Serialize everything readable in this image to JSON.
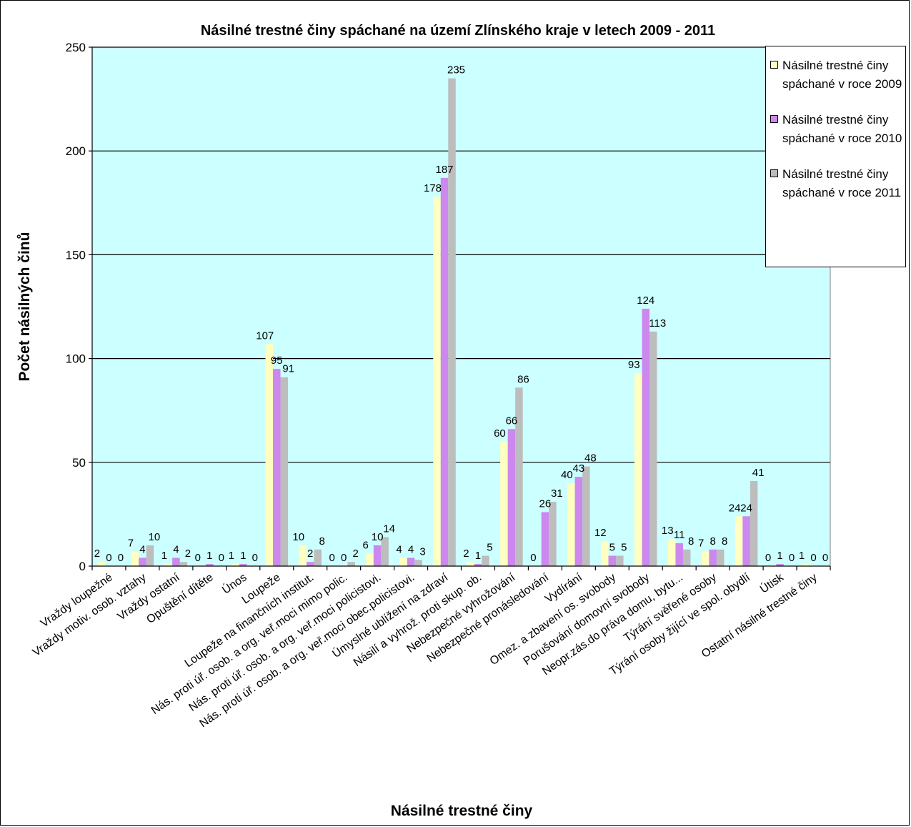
{
  "chart_data": {
    "type": "bar",
    "title": "Násilné trestné činy spáchané na území Zlínského kraje v letech 2009 - 2011",
    "xlabel": "Násilné trestné činy",
    "ylabel": "Počet násilných činů",
    "ylim": [
      0,
      250
    ],
    "yticks": [
      0,
      50,
      100,
      150,
      200,
      250
    ],
    "grid": true,
    "legend_position": "top-right",
    "categories": [
      "Vraždy loupežné",
      "Vraždy motiv. osob. vztahy",
      "Vraždy ostatní",
      "Opuštění dítěte",
      "Únos",
      "Loupeže",
      "Loupeže na finančních institut.",
      "Nás. proti úř. osob. a org. veř.moci mimo polic.",
      "Nás. proti úř. osob. a org. veř.moci  policistovi.",
      "Nás. proti úř. osob. a org. veř.moci  obec.policistovi.",
      "Úmyslné ublížení na zdraví",
      "Násilí a vyhrož. proti skup. ob.",
      "Nebezpečné vyhrožování",
      "Nebezpečné pronásledování",
      "Vydírání",
      "Omez. a zbavení os. svobody",
      "Porušování domovní svobody",
      "Neopr.zás.do práva domu, bytu...",
      "Týrání svěřené osoby",
      "Týrání osoby žijící  ve spol. obydlí",
      "Útisk",
      "Ostatní násilné trestné činy"
    ],
    "series": [
      {
        "name": "Násilné trestné činy spáchané v roce 2009",
        "color": "#FFFFC0",
        "values": [
          2,
          7,
          1,
          0,
          1,
          107,
          10,
          0,
          6,
          4,
          178,
          2,
          60,
          0,
          40,
          12,
          93,
          13,
          7,
          24,
          0,
          1
        ]
      },
      {
        "name": "Násilné trestné činy spáchané v roce 2010",
        "color": "#CC88EE",
        "values": [
          0,
          4,
          4,
          1,
          1,
          95,
          2,
          0,
          10,
          4,
          187,
          1,
          66,
          26,
          43,
          5,
          124,
          11,
          8,
          24,
          1,
          0
        ]
      },
      {
        "name": "Násilné trestné činy spáchané v roce 2011",
        "color": "#BDBDBD",
        "values": [
          0,
          10,
          2,
          0,
          0,
          91,
          8,
          2,
          14,
          3,
          235,
          5,
          86,
          31,
          48,
          5,
          113,
          8,
          8,
          41,
          0,
          0
        ]
      }
    ],
    "plot_background": "#CCFFFF"
  }
}
